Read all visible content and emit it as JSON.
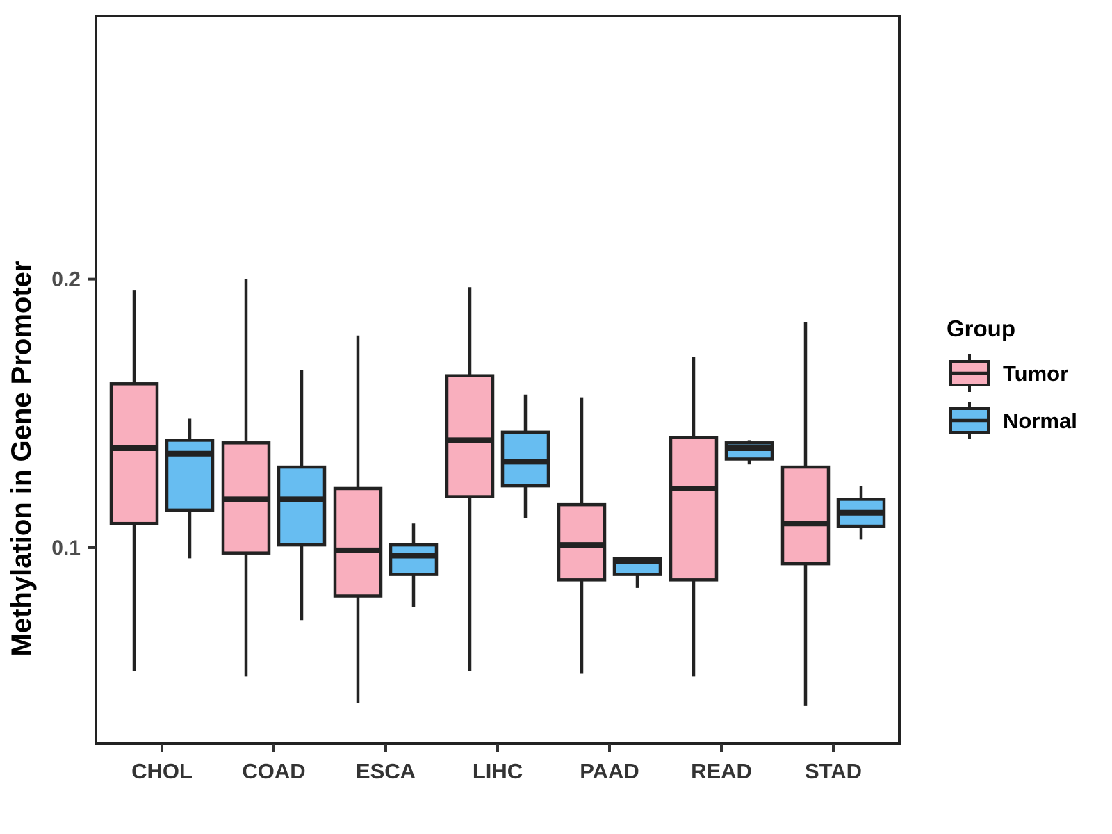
{
  "chart_data": {
    "type": "boxplot",
    "title": "",
    "xlabel": "",
    "ylabel": "Methylation in Gene Promoter",
    "legend_title": "Group",
    "legend_position": "right",
    "grid": false,
    "categories": [
      "CHOL",
      "COAD",
      "ESCA",
      "LIHC",
      "PAAD",
      "READ",
      "STAD"
    ],
    "yticks": [
      0.1,
      0.2
    ],
    "ytick_labels": [
      "0.1",
      "0.2"
    ],
    "ylim": [
      0.027,
      0.298
    ],
    "groups": [
      {
        "name": "Tumor",
        "fill_color": "#F9AFBE"
      },
      {
        "name": "Normal",
        "fill_color": "#67BDF1"
      }
    ],
    "stroke_color": "#222222",
    "series": [
      {
        "name": "Tumor",
        "boxes": [
          {
            "category": "CHOL",
            "min": 0.054,
            "q1": 0.109,
            "median": 0.137,
            "q3": 0.161,
            "max": 0.196
          },
          {
            "category": "COAD",
            "min": 0.052,
            "q1": 0.098,
            "median": 0.118,
            "q3": 0.139,
            "max": 0.2
          },
          {
            "category": "ESCA",
            "min": 0.042,
            "q1": 0.082,
            "median": 0.099,
            "q3": 0.122,
            "max": 0.179
          },
          {
            "category": "LIHC",
            "min": 0.054,
            "q1": 0.119,
            "median": 0.14,
            "q3": 0.164,
            "max": 0.197
          },
          {
            "category": "PAAD",
            "min": 0.053,
            "q1": 0.088,
            "median": 0.101,
            "q3": 0.116,
            "max": 0.156
          },
          {
            "category": "READ",
            "min": 0.052,
            "q1": 0.088,
            "median": 0.122,
            "q3": 0.141,
            "max": 0.171
          },
          {
            "category": "STAD",
            "min": 0.041,
            "q1": 0.094,
            "median": 0.109,
            "q3": 0.13,
            "max": 0.184
          }
        ]
      },
      {
        "name": "Normal",
        "boxes": [
          {
            "category": "CHOL",
            "min": 0.096,
            "q1": 0.114,
            "median": 0.135,
            "q3": 0.14,
            "max": 0.148
          },
          {
            "category": "COAD",
            "min": 0.073,
            "q1": 0.101,
            "median": 0.118,
            "q3": 0.13,
            "max": 0.166
          },
          {
            "category": "ESCA",
            "min": 0.078,
            "q1": 0.09,
            "median": 0.097,
            "q3": 0.101,
            "max": 0.109
          },
          {
            "category": "LIHC",
            "min": 0.111,
            "q1": 0.123,
            "median": 0.132,
            "q3": 0.143,
            "max": 0.157
          },
          {
            "category": "PAAD",
            "min": 0.085,
            "q1": 0.09,
            "median": 0.095,
            "q3": 0.096,
            "max": 0.096
          },
          {
            "category": "READ",
            "min": 0.131,
            "q1": 0.133,
            "median": 0.137,
            "q3": 0.139,
            "max": 0.14
          },
          {
            "category": "STAD",
            "min": 0.103,
            "q1": 0.108,
            "median": 0.113,
            "q3": 0.118,
            "max": 0.123
          }
        ]
      }
    ],
    "axis_text_color": "#4d4d4d",
    "x_label_color": "#333333"
  }
}
